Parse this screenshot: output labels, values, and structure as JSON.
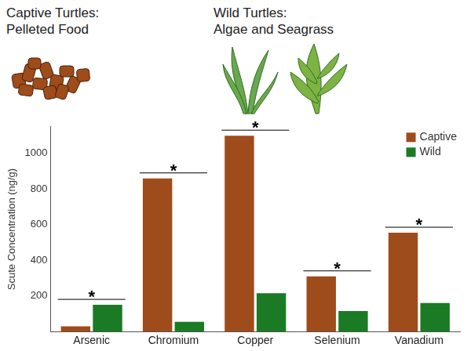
{
  "chart_data": {
    "type": "bar",
    "annotations": [
      [
        "Captive Turtles:",
        "Pelleted Food"
      ],
      [
        "Wild Turtles:",
        "Algae and Seagrass"
      ]
    ],
    "y_label": "Scute Concentration (ng/g)",
    "categories": [
      "Arsenic",
      "Chromium",
      "Copper",
      "Selenium",
      "Vanadium"
    ],
    "series": [
      {
        "name": "Captive",
        "color": "#9e4c1b",
        "values": [
          30,
          860,
          1100,
          310,
          555
        ]
      },
      {
        "name": "Wild",
        "color": "#1b7a24",
        "values": [
          150,
          55,
          215,
          115,
          160
        ]
      }
    ],
    "significance": [
      "*",
      "*",
      "*",
      "*",
      "*"
    ],
    "ylim": [
      0,
      1150
    ],
    "yticks": [
      200,
      400,
      600,
      800,
      1000
    ],
    "grid": false,
    "legend": "upper right"
  }
}
